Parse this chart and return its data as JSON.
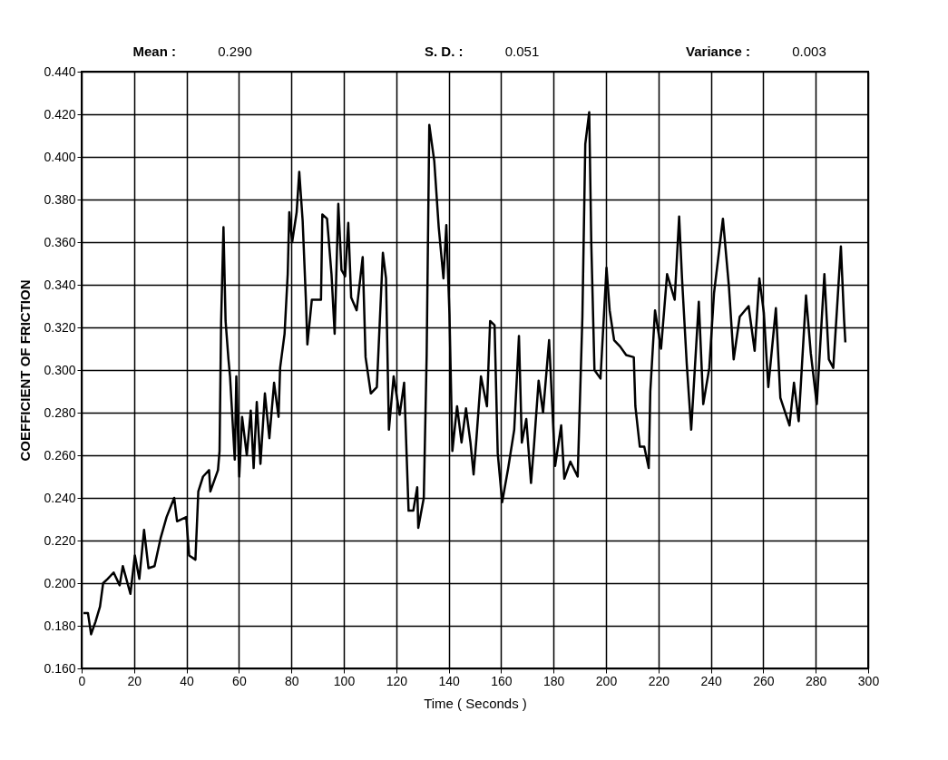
{
  "chart_data": {
    "type": "line",
    "xlabel": "Time ( Seconds )",
    "ylabel": "COEFFICIENT OF FRICTION",
    "annotations": [
      "Mean :",
      "0.290",
      "S. D. :",
      "0.051",
      "Variance :",
      "0.003"
    ],
    "xlim": [
      0,
      300
    ],
    "xticks": [
      0,
      20,
      40,
      60,
      80,
      100,
      120,
      140,
      160,
      180,
      200,
      220,
      240,
      260,
      280,
      300
    ],
    "ylim": [
      0.16,
      0.44
    ],
    "yticks": [
      {
        "value": 0.16,
        "label": "0.160"
      },
      {
        "value": 0.18,
        "label": "0.180"
      },
      {
        "value": 0.2,
        "label": "0.200"
      },
      {
        "value": 0.22,
        "label": "0.220"
      },
      {
        "value": 0.24,
        "label": "0.240"
      },
      {
        "value": 0.26,
        "label": "0.260"
      },
      {
        "value": 0.28,
        "label": "0.280"
      },
      {
        "value": 0.3,
        "label": "0.300"
      },
      {
        "value": 0.32,
        "label": "0.320"
      },
      {
        "value": 0.34,
        "label": "0.340"
      },
      {
        "value": 0.36,
        "label": "0.360"
      },
      {
        "value": 0.38,
        "label": "0.380"
      },
      {
        "value": 0.4,
        "label": "0.400"
      },
      {
        "value": 0.42,
        "label": "0.420"
      },
      {
        "value": 0.44,
        "label": "0.440"
      }
    ],
    "grid": true,
    "marker": "none",
    "line_style": "solid",
    "x": [
      0.7,
      2.4,
      3.6,
      5.3,
      7,
      8.2,
      9.9,
      12.2,
      14.5,
      15.7,
      18.6,
      20.3,
      22,
      23.8,
      25.5,
      27.8,
      30.1,
      32.4,
      35.3,
      36.4,
      39.9,
      41,
      43.4,
      44.5,
      46.3,
      48.6,
      49.1,
      52,
      52.6,
      53.2,
      54.1,
      54.9,
      56,
      56.6,
      58.4,
      59,
      60.1,
      61.2,
      63,
      64.5,
      65.6,
      66.8,
      68.2,
      69.9,
      71.6,
      73.4,
      75.1,
      75.7,
      77.4,
      78.6,
      79.2,
      80.3,
      82,
      83,
      84.3,
      85.5,
      86.1,
      87.8,
      91.3,
      91.8,
      93.6,
      95.3,
      96.5,
      97.9,
      99.1,
      100.5,
      101.7,
      102.8,
      104.9,
      107.2,
      108.3,
      110.3,
      112.6,
      114.9,
      116.1,
      117.2,
      119,
      121.3,
      123,
      124.7,
      126.5,
      128,
      128.4,
      130.5,
      131.6,
      132.6,
      134.5,
      136.2,
      138,
      139.1,
      140.3,
      141.4,
      143.2,
      144.9,
      146.6,
      148.3,
      149.5,
      150.6,
      152.3,
      154.6,
      155.8,
      157.5,
      158.7,
      160.4,
      162.7,
      165,
      166.8,
      167.9,
      169.6,
      171.4,
      172.5,
      174.3,
      176,
      178.3,
      180.6,
      182.9,
      184.1,
      186.4,
      189.2,
      191,
      192.1,
      193.6,
      194.4,
      195.6,
      197.9,
      200.2,
      201.4,
      203.1,
      205.4,
      207.7,
      210.6,
      211.2,
      212.9,
      214.6,
      216.3,
      216.9,
      218.7,
      221,
      223.3,
      226.2,
      227.9,
      229,
      230.8,
      232.5,
      235.4,
      237.1,
      239.4,
      241.2,
      244.6,
      246.9,
      248.7,
      251,
      254.4,
      256.7,
      258.5,
      260.2,
      261.9,
      264.8,
      266.5,
      270,
      271.7,
      273.5,
      276.3,
      278.1,
      280.4,
      283.3,
      285,
      286.7,
      289.6,
      290.8,
      291.3
    ],
    "series": [
      {
        "color": "#000000",
        "values": [
          0.186,
          0.186,
          0.176,
          0.182,
          0.189,
          0.2,
          0.202,
          0.205,
          0.199,
          0.208,
          0.195,
          0.213,
          0.202,
          0.225,
          0.207,
          0.208,
          0.221,
          0.231,
          0.24,
          0.229,
          0.231,
          0.213,
          0.211,
          0.243,
          0.25,
          0.253,
          0.243,
          0.253,
          0.262,
          0.323,
          0.367,
          0.323,
          0.305,
          0.297,
          0.258,
          0.297,
          0.25,
          0.278,
          0.26,
          0.281,
          0.254,
          0.285,
          0.256,
          0.289,
          0.268,
          0.294,
          0.278,
          0.301,
          0.317,
          0.345,
          0.374,
          0.36,
          0.374,
          0.393,
          0.37,
          0.334,
          0.312,
          0.333,
          0.333,
          0.373,
          0.371,
          0.345,
          0.317,
          0.378,
          0.347,
          0.344,
          0.369,
          0.334,
          0.328,
          0.353,
          0.306,
          0.289,
          0.292,
          0.355,
          0.343,
          0.272,
          0.297,
          0.279,
          0.294,
          0.234,
          0.234,
          0.245,
          0.226,
          0.24,
          0.307,
          0.415,
          0.398,
          0.367,
          0.343,
          0.368,
          0.326,
          0.262,
          0.283,
          0.266,
          0.282,
          0.266,
          0.251,
          0.268,
          0.297,
          0.283,
          0.323,
          0.321,
          0.261,
          0.238,
          0.254,
          0.272,
          0.316,
          0.266,
          0.277,
          0.247,
          0.264,
          0.295,
          0.28,
          0.314,
          0.255,
          0.274,
          0.249,
          0.257,
          0.25,
          0.325,
          0.406,
          0.421,
          0.359,
          0.3,
          0.296,
          0.348,
          0.328,
          0.314,
          0.311,
          0.307,
          0.306,
          0.283,
          0.264,
          0.264,
          0.254,
          0.29,
          0.328,
          0.31,
          0.345,
          0.333,
          0.372,
          0.343,
          0.303,
          0.272,
          0.332,
          0.284,
          0.301,
          0.336,
          0.371,
          0.339,
          0.305,
          0.325,
          0.33,
          0.309,
          0.343,
          0.327,
          0.292,
          0.329,
          0.287,
          0.274,
          0.294,
          0.276,
          0.335,
          0.308,
          0.284,
          0.345,
          0.305,
          0.301,
          0.358,
          0.324,
          0.313
        ]
      }
    ]
  }
}
